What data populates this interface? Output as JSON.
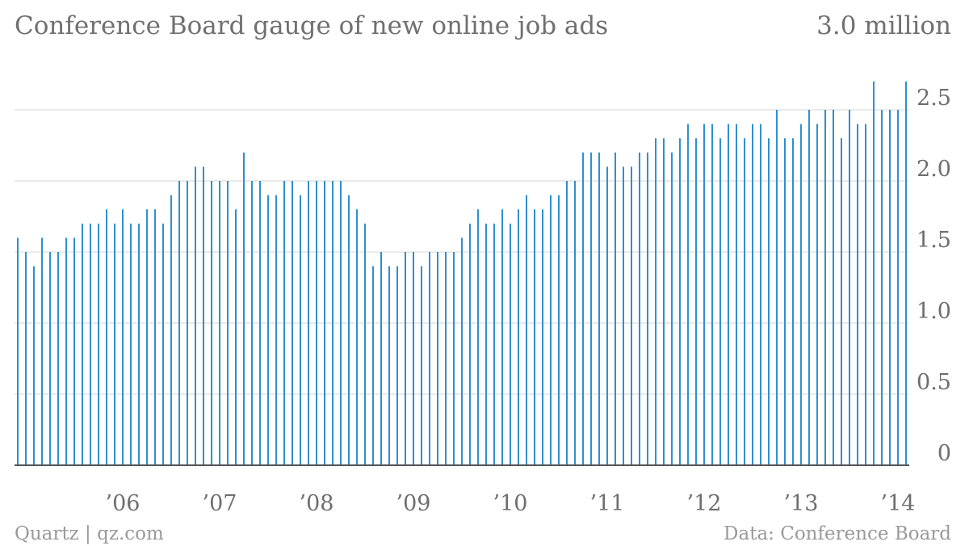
{
  "chart_data": {
    "type": "bar",
    "title": "Conference Board gauge of new online job ads",
    "ylabel_top": "3.0 million",
    "ylim": [
      0,
      3.0
    ],
    "yticks": [
      {
        "value": 0,
        "label": "0"
      },
      {
        "value": 0.5,
        "label": "0.5"
      },
      {
        "value": 1.0,
        "label": "1.0"
      },
      {
        "value": 1.5,
        "label": "1.5"
      },
      {
        "value": 2.0,
        "label": "2.0"
      },
      {
        "value": 2.5,
        "label": "2.5"
      }
    ],
    "xticks": [
      {
        "year": 2006,
        "label": "’06"
      },
      {
        "year": 2007,
        "label": "’07"
      },
      {
        "year": 2008,
        "label": "’08"
      },
      {
        "year": 2009,
        "label": "’09"
      },
      {
        "year": 2010,
        "label": "’10"
      },
      {
        "year": 2011,
        "label": "’11"
      },
      {
        "year": 2012,
        "label": "’12"
      },
      {
        "year": 2013,
        "label": "’13"
      },
      {
        "year": 2014,
        "label": "’14"
      }
    ],
    "start": "2005-06",
    "frequency": "monthly",
    "values": [
      1.6,
      1.5,
      1.4,
      1.6,
      1.5,
      1.5,
      1.6,
      1.6,
      1.7,
      1.7,
      1.7,
      1.8,
      1.7,
      1.8,
      1.7,
      1.7,
      1.8,
      1.8,
      1.7,
      1.9,
      2.0,
      2.0,
      2.1,
      2.1,
      2.0,
      2.0,
      2.0,
      1.8,
      2.2,
      2.0,
      2.0,
      1.9,
      1.9,
      2.0,
      2.0,
      1.9,
      2.0,
      2.0,
      2.0,
      2.0,
      2.0,
      1.9,
      1.8,
      1.7,
      1.4,
      1.5,
      1.4,
      1.4,
      1.5,
      1.5,
      1.4,
      1.5,
      1.5,
      1.5,
      1.5,
      1.6,
      1.7,
      1.8,
      1.7,
      1.7,
      1.8,
      1.7,
      1.8,
      1.9,
      1.8,
      1.8,
      1.9,
      1.9,
      2.0,
      2.0,
      2.2,
      2.2,
      2.2,
      2.1,
      2.2,
      2.1,
      2.1,
      2.2,
      2.2,
      2.3,
      2.3,
      2.2,
      2.3,
      2.4,
      2.3,
      2.4,
      2.4,
      2.3,
      2.4,
      2.4,
      2.3,
      2.4,
      2.4,
      2.3,
      2.5,
      2.3,
      2.3,
      2.4,
      2.5,
      2.4,
      2.5,
      2.5,
      2.3,
      2.5,
      2.4,
      2.4,
      2.7,
      2.5,
      2.5,
      2.5,
      2.7
    ],
    "color": "#2f8fd0",
    "grid": true
  },
  "footer": {
    "left": "Quartz | qz.com",
    "right": "Data: Conference Board"
  }
}
